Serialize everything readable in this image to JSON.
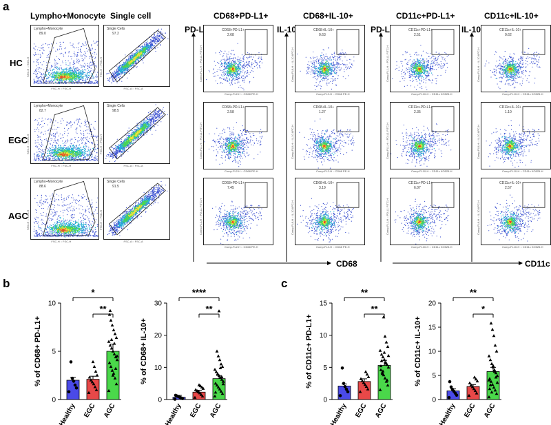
{
  "panels": {
    "a": "a",
    "b": "b",
    "c": "c"
  },
  "headers": [
    "Lympho+Monocyte",
    "Single cell",
    "CD68+PD-L1+",
    "CD68+IL-10+",
    "CD11c+PD-L1+",
    "CD11c+IL-10+"
  ],
  "rows": [
    "HC",
    "EGC",
    "AGC"
  ],
  "axis_labels": {
    "pdl1_a": "PD-L1",
    "il10_a": "IL-10",
    "pdl1_b": "PD-L1",
    "il10_b": "IL-10",
    "cd68": "CD68",
    "cd11c": "CD11c"
  },
  "plot_axes": {
    "lympho_x": "FSC-H :: FSC-H",
    "lympho_y": "SSC-H :: SSC-H",
    "single_x": "FSC-A :: FSC-A",
    "single_y": "FSC-H :: FSC-H",
    "cd68_x": "Comp-FL2-H :: CD68 PE-H",
    "cd11c_x": "Comp-FL10-H :: CD11c KO525-H",
    "pdl1_y": "Comp-FL1-H :: PD-L1 FITC-H",
    "il10_y": "Comp-FL8-H :: IL-10 APC-H"
  },
  "gates": {
    "lympho": {
      "name": "Lympho+Monocyte",
      "values": [
        "89.0",
        "82.7",
        "88.6"
      ]
    },
    "single": {
      "name": "Single Cells",
      "values": [
        "97.2",
        "98.5",
        "91.5"
      ]
    },
    "cd68_pdl1": {
      "name": "CD68+PD-L1+",
      "values": [
        "2.68",
        "2.58",
        "7.45"
      ]
    },
    "cd68_il10": {
      "name": "CD68+IL-10+",
      "values": [
        "0.63",
        "1.27",
        "3.19"
      ]
    },
    "cd11c_pdl1": {
      "name": "CD11c+PD-L1+",
      "values": [
        "2.51",
        "2.35",
        "6.07"
      ]
    },
    "cd11c_il10": {
      "name": "CD11c+IL-10+",
      "values": [
        "0.62",
        "1.10",
        "2.57"
      ]
    }
  },
  "chart_data": [
    {
      "type": "bar",
      "categories": [
        "Healthy",
        "EGC",
        "AGC"
      ],
      "values": [
        2.0,
        2.1,
        5.0
      ],
      "ylabel": "% of CD68+ PD-L1+",
      "ylim": [
        0,
        10
      ],
      "yticks": [
        "0",
        "5",
        "10"
      ],
      "colors": [
        "#4a4ae8",
        "#e84848",
        "#4ad84a"
      ],
      "significance": [
        "*",
        "**"
      ],
      "points": [
        [
          0.8,
          1.2,
          1.5,
          1.9,
          2.2,
          3.9
        ],
        [
          0.7,
          1.0,
          1.3,
          1.6,
          1.8,
          2.0,
          2.3,
          2.5,
          2.9,
          3.4,
          3.9
        ],
        [
          0.9,
          1.6,
          2.2,
          2.7,
          3.0,
          3.4,
          3.8,
          4.1,
          4.4,
          4.7,
          5.0,
          5.3,
          5.6,
          6.0,
          6.4,
          6.8,
          7.2,
          7.7,
          8.2,
          8.8,
          4.5,
          3.2,
          5.8,
          2.5,
          6.2,
          9.2
        ]
      ]
    },
    {
      "type": "bar",
      "categories": [
        "Healthy",
        "EGC",
        "AGC"
      ],
      "values": [
        0.7,
        2.3,
        6.5
      ],
      "ylabel": "% of CD68+ IL-10+",
      "ylim": [
        0,
        30
      ],
      "yticks": [
        "0",
        "10",
        "20",
        "30"
      ],
      "colors": [
        "#4a4ae8",
        "#e84848",
        "#4ad84a"
      ],
      "significance": [
        "****",
        "**"
      ],
      "points": [
        [
          0.1,
          0.3,
          0.5,
          0.7,
          0.9,
          1.1,
          1.3
        ],
        [
          0.6,
          1.0,
          1.5,
          2.0,
          2.3,
          2.7,
          3.0,
          3.4,
          3.8,
          4.2,
          4.5
        ],
        [
          1.0,
          1.8,
          2.5,
          3.2,
          3.8,
          4.4,
          5.0,
          5.6,
          6.2,
          6.8,
          7.4,
          8.0,
          8.6,
          9.3,
          10.2,
          11.0,
          12.3,
          13.5,
          15.0,
          2.2,
          4.8,
          7.0,
          9.8,
          27.5
        ]
      ]
    },
    {
      "type": "bar",
      "categories": [
        "Healthy",
        "EGC",
        "AGC"
      ],
      "values": [
        2.1,
        2.8,
        5.3
      ],
      "ylabel": "% of CD11c+ PD-L1+",
      "ylim": [
        0,
        15
      ],
      "yticks": [
        "0",
        "5",
        "10",
        "15"
      ],
      "colors": [
        "#4a4ae8",
        "#e84848",
        "#4ad84a"
      ],
      "significance": [
        "**",
        "**"
      ],
      "points": [
        [
          0.6,
          1.2,
          1.6,
          2.0,
          2.5,
          4.9
        ],
        [
          1.2,
          1.6,
          2.0,
          2.3,
          2.6,
          2.9,
          3.2,
          3.5,
          3.9,
          4.3
        ],
        [
          1.5,
          2.2,
          2.8,
          3.3,
          3.8,
          4.2,
          4.6,
          5.0,
          5.4,
          5.8,
          6.2,
          6.6,
          7.0,
          7.6,
          8.2,
          8.9,
          9.8,
          12.8,
          4.0,
          5.2,
          6.8,
          3.0,
          5.6,
          7.3,
          4.4,
          6.0
        ]
      ]
    },
    {
      "type": "bar",
      "categories": [
        "Healthy",
        "EGC",
        "AGC"
      ],
      "values": [
        1.8,
        2.7,
        5.8
      ],
      "ylabel": "% of CD11c+ IL-10+",
      "ylim": [
        0,
        20
      ],
      "yticks": [
        "0",
        "5",
        "10",
        "15",
        "20"
      ],
      "colors": [
        "#4a4ae8",
        "#e84848",
        "#4ad84a"
      ],
      "significance": [
        "**",
        "*"
      ],
      "points": [
        [
          0.4,
          0.9,
          1.3,
          1.7,
          2.1,
          2.6,
          3.7
        ],
        [
          0.8,
          1.3,
          1.8,
          2.2,
          2.6,
          3.0,
          3.4,
          3.8,
          4.2,
          4.6
        ],
        [
          0.5,
          1.2,
          1.9,
          2.5,
          3.1,
          3.7,
          4.3,
          4.9,
          5.5,
          6.1,
          6.7,
          7.4,
          8.2,
          9.0,
          10.0,
          11.2,
          13.2,
          14.5,
          15.8,
          2.2,
          3.5,
          4.6,
          5.8,
          7.0,
          1.5,
          3.0,
          4.0
        ]
      ]
    }
  ]
}
